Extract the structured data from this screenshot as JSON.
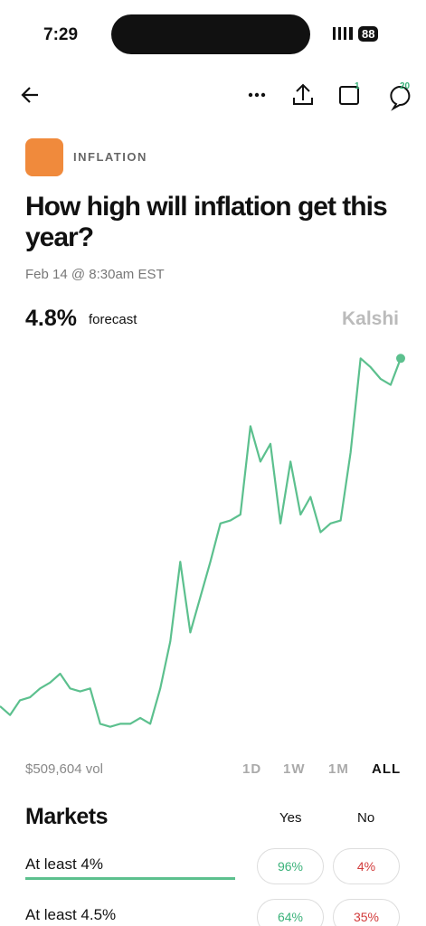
{
  "status_bar": {
    "time": "7:29",
    "battery": "88"
  },
  "nav": {
    "calendar_badge": "1",
    "comments_badge": "20"
  },
  "header": {
    "category": "INFLATION",
    "title": "How high will inflation get this year?",
    "date": "Feb 14 @ 8:30am EST"
  },
  "forecast": {
    "value": "4.8%",
    "label": "forecast",
    "brand": "Kalshi"
  },
  "chart_data": {
    "type": "line",
    "color": "#5cc08e",
    "ylim": [
      3.5,
      4.85
    ],
    "values": [
      3.62,
      3.59,
      3.64,
      3.65,
      3.68,
      3.7,
      3.73,
      3.68,
      3.67,
      3.68,
      3.56,
      3.55,
      3.56,
      3.56,
      3.58,
      3.56,
      3.68,
      3.84,
      4.11,
      3.87,
      3.99,
      4.11,
      4.24,
      4.25,
      4.27,
      4.57,
      4.45,
      4.51,
      4.24,
      4.45,
      4.27,
      4.33,
      4.21,
      4.24,
      4.25,
      4.48,
      4.8,
      4.77,
      4.73,
      4.71,
      4.8
    ]
  },
  "volume": "$509,604 vol",
  "ranges": [
    "1D",
    "1W",
    "1M",
    "ALL"
  ],
  "markets": {
    "title": "Markets",
    "yes_header": "Yes",
    "no_header": "No",
    "rows": [
      {
        "label": "At least 4%",
        "yes": "96%",
        "no": "4%"
      },
      {
        "label": "At least 4.5%",
        "yes": "64%",
        "no": "35%"
      }
    ]
  }
}
